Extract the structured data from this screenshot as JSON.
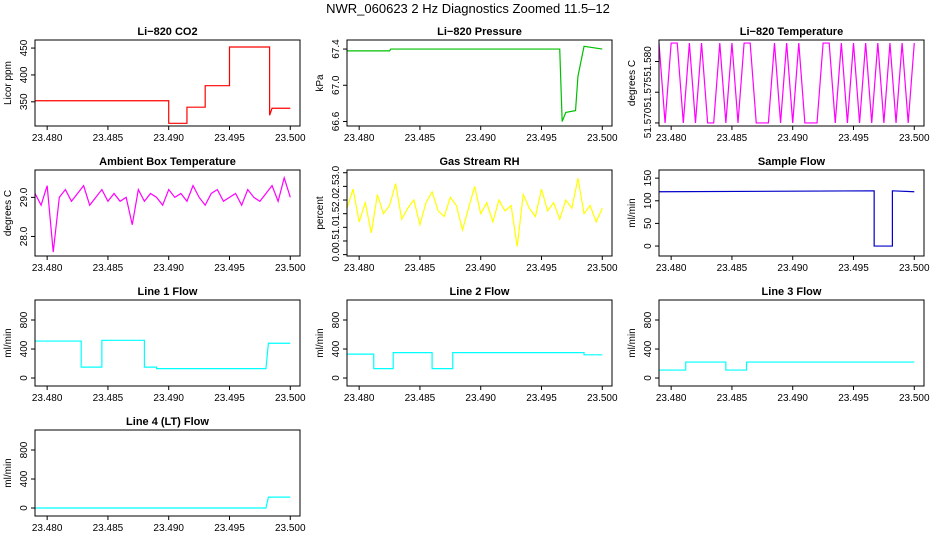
{
  "title": "NWR_060623  2 Hz Diagnostics Zoomed 11.5–12",
  "chart_data": [
    {
      "type": "line",
      "title": "Li−820 CO2",
      "ylabel": "Licor ppm",
      "color": "#ff0000",
      "x": [
        23.479,
        23.49,
        23.49,
        23.4915,
        23.4915,
        23.493,
        23.493,
        23.495,
        23.495,
        23.4983,
        23.4983,
        23.4985,
        23.5
      ],
      "values": [
        352,
        352,
        310,
        310,
        340,
        340,
        380,
        380,
        452,
        452,
        325,
        338,
        338
      ],
      "xlim": [
        23.479,
        23.5008
      ],
      "ylim": [
        305,
        465
      ],
      "yticks": [
        350,
        400,
        450
      ],
      "xticks": [
        {
          "value": 23.48,
          "label": "23.480"
        },
        {
          "value": 23.485,
          "label": "23.485"
        },
        {
          "value": 23.49,
          "label": "23.490"
        },
        {
          "value": 23.495,
          "label": "23.495"
        },
        {
          "value": 23.5,
          "label": "23.500"
        }
      ]
    },
    {
      "type": "line",
      "title": "Li−820 Pressure",
      "ylabel": "kPa",
      "color": "#00c000",
      "x": [
        23.479,
        23.4825,
        23.4826,
        23.4965,
        23.4967,
        23.497,
        23.4978,
        23.498,
        23.4985,
        23.5
      ],
      "values": [
        67.38,
        67.38,
        67.4,
        67.4,
        66.6,
        66.7,
        66.72,
        67.1,
        67.43,
        67.4
      ],
      "xlim": [
        23.479,
        23.5008
      ],
      "ylim": [
        66.55,
        67.5
      ],
      "yticks": [
        66.6,
        {
          "value": 67.0,
          "label": "67.0"
        },
        67.4
      ],
      "xticks": [
        {
          "value": 23.48,
          "label": "23.480"
        },
        {
          "value": 23.485,
          "label": "23.485"
        },
        {
          "value": 23.49,
          "label": "23.490"
        },
        {
          "value": 23.495,
          "label": "23.495"
        },
        {
          "value": 23.5,
          "label": "23.500"
        }
      ]
    },
    {
      "type": "line",
      "title": "Li−820 Temperature",
      "ylabel": "degrees C",
      "color": "#ff00ff",
      "x": [
        23.479,
        23.4795,
        23.48,
        23.4805,
        23.481,
        23.4815,
        23.482,
        23.4825,
        23.483,
        23.4835,
        23.484,
        23.4845,
        23.485,
        23.4855,
        23.486,
        23.4865,
        23.487,
        23.4875,
        23.488,
        23.4885,
        23.489,
        23.4895,
        23.49,
        23.4905,
        23.491,
        23.4915,
        23.492,
        23.4925,
        23.493,
        23.4935,
        23.494,
        23.4945,
        23.495,
        23.4955,
        23.496,
        23.4965,
        23.497,
        23.4975,
        23.498,
        23.4985,
        23.499,
        23.4995,
        23.5
      ],
      "values": [
        51.583,
        51.57,
        51.583,
        51.583,
        51.57,
        51.583,
        51.57,
        51.583,
        51.57,
        51.57,
        51.583,
        51.57,
        51.583,
        51.57,
        51.583,
        51.583,
        51.57,
        51.57,
        51.57,
        51.583,
        51.57,
        51.583,
        51.57,
        51.583,
        51.57,
        51.57,
        51.57,
        51.583,
        51.583,
        51.57,
        51.583,
        51.57,
        51.583,
        51.57,
        51.583,
        51.57,
        51.583,
        51.57,
        51.583,
        51.57,
        51.583,
        51.57,
        51.583
      ],
      "xlim": [
        23.479,
        23.5008
      ],
      "ylim": [
        51.5695,
        51.5835
      ],
      "yticks": [
        {
          "value": 51.57,
          "label": "51.570"
        },
        {
          "value": 51.575,
          "label": "51.575"
        },
        {
          "value": 51.58,
          "label": "51.580"
        }
      ],
      "xticks": [
        {
          "value": 23.48,
          "label": "23.480"
        },
        {
          "value": 23.485,
          "label": "23.485"
        },
        {
          "value": 23.49,
          "label": "23.490"
        },
        {
          "value": 23.495,
          "label": "23.495"
        },
        {
          "value": 23.5,
          "label": "23.500"
        }
      ]
    },
    {
      "type": "line",
      "title": "Ambient Box Temperature",
      "ylabel": "degrees C",
      "color": "#ff00ff",
      "x": [
        23.479,
        23.4795,
        23.48,
        23.4805,
        23.481,
        23.4815,
        23.482,
        23.4825,
        23.483,
        23.4835,
        23.484,
        23.4845,
        23.485,
        23.4855,
        23.486,
        23.4865,
        23.487,
        23.4875,
        23.488,
        23.4885,
        23.489,
        23.4895,
        23.49,
        23.4905,
        23.491,
        23.4915,
        23.492,
        23.4925,
        23.493,
        23.4935,
        23.494,
        23.4945,
        23.495,
        23.4955,
        23.496,
        23.4965,
        23.497,
        23.4975,
        23.498,
        23.4985,
        23.499,
        23.4995,
        23.5
      ],
      "values": [
        29.1,
        28.8,
        29.3,
        27.6,
        29.0,
        29.2,
        28.9,
        29.1,
        29.3,
        28.8,
        29.0,
        29.2,
        28.9,
        29.1,
        28.9,
        29.0,
        28.3,
        29.2,
        28.9,
        29.1,
        29.0,
        28.8,
        29.2,
        29.0,
        29.1,
        28.9,
        29.3,
        29.0,
        28.8,
        29.1,
        29.2,
        28.9,
        29.0,
        29.1,
        28.8,
        29.2,
        29.0,
        28.9,
        29.1,
        29.3,
        28.9,
        29.5,
        29.0
      ],
      "xlim": [
        23.479,
        23.5008
      ],
      "ylim": [
        27.5,
        29.7
      ],
      "yticks": [
        {
          "value": 28.0,
          "label": "28.0"
        },
        {
          "value": 29.0,
          "label": "29.0"
        }
      ],
      "xticks": [
        {
          "value": 23.48,
          "label": "23.480"
        },
        {
          "value": 23.485,
          "label": "23.485"
        },
        {
          "value": 23.49,
          "label": "23.490"
        },
        {
          "value": 23.495,
          "label": "23.495"
        },
        {
          "value": 23.5,
          "label": "23.500"
        }
      ]
    },
    {
      "type": "line",
      "title": "Gas Stream RH",
      "ylabel": "percent",
      "color": "#ffff00",
      "x": [
        23.479,
        23.4795,
        23.48,
        23.4805,
        23.481,
        23.4815,
        23.482,
        23.4825,
        23.483,
        23.4835,
        23.484,
        23.4845,
        23.485,
        23.4855,
        23.486,
        23.4865,
        23.487,
        23.4875,
        23.488,
        23.4885,
        23.489,
        23.4895,
        23.49,
        23.4905,
        23.491,
        23.4915,
        23.492,
        23.4925,
        23.493,
        23.4935,
        23.494,
        23.4945,
        23.495,
        23.4955,
        23.496,
        23.4965,
        23.497,
        23.4975,
        23.498,
        23.4985,
        23.499,
        23.4995,
        23.5
      ],
      "values": [
        1.7,
        2.4,
        1.2,
        1.9,
        0.8,
        2.2,
        1.5,
        1.8,
        2.6,
        1.3,
        1.7,
        2.0,
        1.1,
        1.9,
        2.3,
        1.6,
        1.4,
        2.1,
        1.8,
        0.9,
        1.7,
        2.5,
        1.5,
        1.9,
        1.2,
        2.0,
        1.6,
        1.8,
        0.3,
        2.2,
        1.7,
        1.4,
        2.4,
        1.6,
        1.9,
        1.3,
        2.0,
        1.7,
        2.8,
        1.5,
        1.8,
        1.2,
        1.7
      ],
      "xlim": [
        23.479,
        23.5008
      ],
      "ylim": [
        -0.05,
        3.1
      ],
      "yticks": [
        {
          "value": 0.0,
          "label": "0.0"
        },
        0.5,
        {
          "value": 1.0,
          "label": "1.0"
        },
        1.5,
        {
          "value": 2.0,
          "label": "2.0"
        },
        2.5,
        {
          "value": 3.0,
          "label": "3.0"
        }
      ],
      "xticks": [
        {
          "value": 23.48,
          "label": "23.480"
        },
        {
          "value": 23.485,
          "label": "23.485"
        },
        {
          "value": 23.49,
          "label": "23.490"
        },
        {
          "value": 23.495,
          "label": "23.495"
        },
        {
          "value": 23.5,
          "label": "23.500"
        }
      ]
    },
    {
      "type": "line",
      "title": "Sample Flow",
      "ylabel": "ml/min",
      "color": "#0000c8",
      "x": [
        23.479,
        23.4967,
        23.4967,
        23.4982,
        23.4982,
        23.5
      ],
      "values": [
        120,
        122,
        0,
        0,
        122,
        120
      ],
      "xlim": [
        23.479,
        23.5008
      ],
      "ylim": [
        -22,
        168
      ],
      "yticks": [
        0,
        50,
        100,
        150
      ],
      "xticks": [
        {
          "value": 23.48,
          "label": "23.480"
        },
        {
          "value": 23.485,
          "label": "23.485"
        },
        {
          "value": 23.49,
          "label": "23.490"
        },
        {
          "value": 23.495,
          "label": "23.495"
        },
        {
          "value": 23.5,
          "label": "23.500"
        }
      ]
    },
    {
      "type": "line",
      "title": "Line 1 Flow",
      "ylabel": "ml/min",
      "color": "#00ffff",
      "x": [
        23.479,
        23.4828,
        23.4828,
        23.4845,
        23.4845,
        23.488,
        23.488,
        23.489,
        23.489,
        23.498,
        23.4982,
        23.5
      ],
      "values": [
        510,
        510,
        150,
        150,
        520,
        520,
        150,
        150,
        130,
        130,
        480,
        480
      ],
      "xlim": [
        23.479,
        23.5008
      ],
      "ylim": [
        -110,
        1076
      ],
      "yticks": [
        0,
        400,
        800
      ],
      "xticks": [
        {
          "value": 23.48,
          "label": "23.480"
        },
        {
          "value": 23.485,
          "label": "23.485"
        },
        {
          "value": 23.49,
          "label": "23.490"
        },
        {
          "value": 23.495,
          "label": "23.495"
        },
        {
          "value": 23.5,
          "label": "23.500"
        }
      ]
    },
    {
      "type": "line",
      "title": "Line 2 Flow",
      "ylabel": "ml/min",
      "color": "#00ffff",
      "x": [
        23.479,
        23.4812,
        23.4812,
        23.4828,
        23.4828,
        23.486,
        23.486,
        23.4877,
        23.4877,
        23.4985,
        23.4985,
        23.5
      ],
      "values": [
        330,
        330,
        130,
        130,
        350,
        350,
        130,
        130,
        350,
        350,
        320,
        320
      ],
      "xlim": [
        23.479,
        23.5008
      ],
      "ylim": [
        -110,
        1076
      ],
      "yticks": [
        0,
        400,
        800
      ],
      "xticks": [
        {
          "value": 23.48,
          "label": "23.480"
        },
        {
          "value": 23.485,
          "label": "23.485"
        },
        {
          "value": 23.49,
          "label": "23.490"
        },
        {
          "value": 23.495,
          "label": "23.495"
        },
        {
          "value": 23.5,
          "label": "23.500"
        }
      ]
    },
    {
      "type": "line",
      "title": "Line 3 Flow",
      "ylabel": "ml/min",
      "color": "#00ffff",
      "x": [
        23.479,
        23.4812,
        23.4812,
        23.4845,
        23.4845,
        23.4862,
        23.4862,
        23.5
      ],
      "values": [
        110,
        110,
        220,
        220,
        110,
        110,
        220,
        220
      ],
      "xlim": [
        23.479,
        23.5008
      ],
      "ylim": [
        -110,
        1076
      ],
      "yticks": [
        0,
        400,
        800
      ],
      "xticks": [
        {
          "value": 23.48,
          "label": "23.480"
        },
        {
          "value": 23.485,
          "label": "23.485"
        },
        {
          "value": 23.49,
          "label": "23.490"
        },
        {
          "value": 23.495,
          "label": "23.495"
        },
        {
          "value": 23.5,
          "label": "23.500"
        }
      ]
    },
    {
      "type": "line",
      "title": "Line 4 (LT) Flow",
      "ylabel": "ml/min",
      "color": "#00ffff",
      "x": [
        23.479,
        23.498,
        23.4982,
        23.5
      ],
      "values": [
        0,
        0,
        150,
        150
      ],
      "xlim": [
        23.479,
        23.5008
      ],
      "ylim": [
        -110,
        1076
      ],
      "yticks": [
        0,
        400,
        800
      ],
      "xticks": [
        {
          "value": 23.48,
          "label": "23.480"
        },
        {
          "value": 23.485,
          "label": "23.485"
        },
        {
          "value": 23.49,
          "label": "23.490"
        },
        {
          "value": 23.495,
          "label": "23.495"
        },
        {
          "value": 23.5,
          "label": "23.500"
        }
      ]
    }
  ]
}
